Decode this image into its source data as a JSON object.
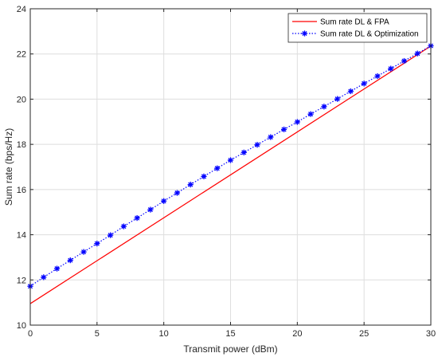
{
  "chart_data": {
    "type": "line",
    "title": "",
    "xlabel": "Transmit power (dBm)",
    "ylabel": "Sum rate (bps/Hz)",
    "xlim": [
      0,
      30
    ],
    "ylim": [
      10,
      24
    ],
    "xticks": [
      0,
      5,
      10,
      15,
      20,
      25,
      30
    ],
    "yticks": [
      10,
      12,
      14,
      16,
      18,
      20,
      22,
      24
    ],
    "grid": true,
    "legend_position": "top-right",
    "series": [
      {
        "name": "Sum rate DL & FPA",
        "color": "#ff0000",
        "style": "solid",
        "marker": "none",
        "x": [
          0,
          30
        ],
        "y": [
          10.95,
          22.35
        ]
      },
      {
        "name": "Sum rate DL & Optimization",
        "color": "#0000ff",
        "style": "dotted",
        "marker": "asterisk",
        "x": [
          0,
          1,
          2,
          3,
          4,
          5,
          6,
          7,
          8,
          9,
          10,
          11,
          12,
          13,
          14,
          15,
          16,
          17,
          18,
          19,
          20,
          21,
          22,
          23,
          24,
          25,
          26,
          27,
          28,
          29,
          30
        ],
        "y": [
          11.72,
          12.12,
          12.5,
          12.87,
          13.24,
          13.61,
          13.98,
          14.37,
          14.74,
          15.11,
          15.49,
          15.85,
          16.22,
          16.58,
          16.94,
          17.3,
          17.64,
          17.98,
          18.32,
          18.66,
          18.99,
          19.34,
          19.67,
          20.01,
          20.35,
          20.69,
          21.02,
          21.35,
          21.69,
          22.02,
          22.36
        ]
      }
    ]
  }
}
